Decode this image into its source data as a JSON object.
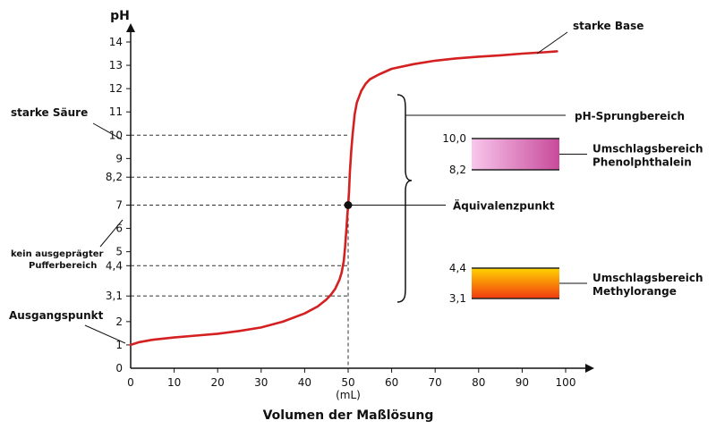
{
  "chart_data": {
    "type": "line",
    "ylabel": "pH",
    "xlabel": "Volumen der Maßlösung",
    "xunit": "(mL)",
    "xlim": [
      0,
      100
    ],
    "ylim": [
      0,
      14
    ],
    "x_ticks": [
      "0",
      "10",
      "20",
      "30",
      "40",
      "50",
      "60",
      "70",
      "80",
      "90",
      "100"
    ],
    "y_ticks": [
      {
        "v": 0,
        "label": "0"
      },
      {
        "v": 1,
        "label": "1"
      },
      {
        "v": 2,
        "label": "2"
      },
      {
        "v": 3.1,
        "label": "3,1"
      },
      {
        "v": 4.4,
        "label": "4,4"
      },
      {
        "v": 5,
        "label": "5"
      },
      {
        "v": 6,
        "label": "6"
      },
      {
        "v": 7,
        "label": "7"
      },
      {
        "v": 8.2,
        "label": "8,2"
      },
      {
        "v": 9,
        "label": "9"
      },
      {
        "v": 10,
        "label": "10"
      },
      {
        "v": 11,
        "label": "11"
      },
      {
        "v": 12,
        "label": "12"
      },
      {
        "v": 13,
        "label": "13"
      },
      {
        "v": 14,
        "label": "14"
      }
    ],
    "curve_color": "#d42020",
    "series": [
      {
        "x": [
          0,
          2,
          5,
          10,
          15,
          20,
          25,
          30,
          35,
          40,
          43,
          45,
          46,
          47,
          48,
          48.5,
          49,
          49.3,
          49.6,
          49.8,
          50,
          50.2,
          50.4,
          50.7,
          51,
          51.5,
          52,
          53,
          54,
          55,
          57,
          60,
          65,
          70,
          75,
          80,
          85,
          90,
          95,
          98
        ],
        "y": [
          1.0,
          1.12,
          1.22,
          1.32,
          1.4,
          1.48,
          1.6,
          1.75,
          2.0,
          2.35,
          2.65,
          2.95,
          3.15,
          3.4,
          3.8,
          4.1,
          4.6,
          5.2,
          6.0,
          6.5,
          7.0,
          7.6,
          8.4,
          9.3,
          10.0,
          10.9,
          11.4,
          11.9,
          12.2,
          12.4,
          12.6,
          12.85,
          13.05,
          13.2,
          13.3,
          13.37,
          13.43,
          13.5,
          13.56,
          13.6
        ]
      }
    ],
    "reference_lines": [
      {
        "y": 10,
        "label": "starke Säure"
      },
      {
        "y": 8.2
      },
      {
        "y": 7
      },
      {
        "y": 4.4
      },
      {
        "y": 3.1
      }
    ],
    "annotations": {
      "strong_base": "starke Base",
      "strong_acid": "starke Säure",
      "no_buffer_1": "kein ausgeprägter",
      "no_buffer_2": "Pufferbereich",
      "start_point": "Ausgangspunkt",
      "jump_range": "pH-Sprungbereich",
      "equivalence_point": "Äquivalenzpunkt",
      "equivalence": {
        "x": 50,
        "y": 7
      }
    },
    "indicators": [
      {
        "top_label": "10,0",
        "bottom_label": "8,2",
        "top": 10.0,
        "bottom": 8.2,
        "name_1": "Umschlagsbereich",
        "name_2": "Phenolphthalein",
        "colors": [
          "#f8c6ec",
          "#c84a9a"
        ]
      },
      {
        "top_label": "4,4",
        "bottom_label": "3,1",
        "top": 4.4,
        "bottom": 3.1,
        "name_1": "Umschlagsbereich",
        "name_2": "Methylorange",
        "colors": [
          "#ffd400",
          "#f23a10"
        ]
      }
    ]
  }
}
